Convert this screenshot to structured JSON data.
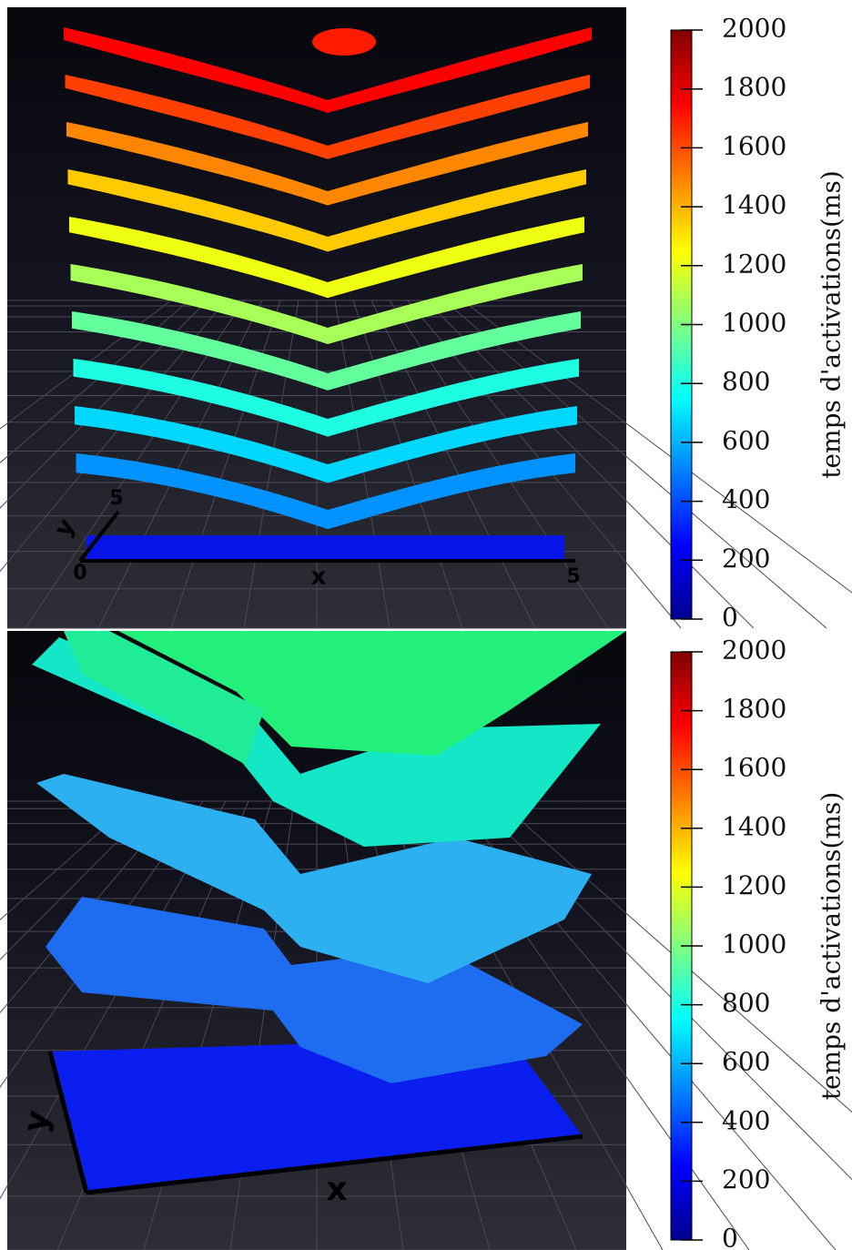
{
  "panels": [
    {
      "axis_labels": {
        "y_max": "5",
        "y": "y",
        "origin": "0",
        "x": "x",
        "x_max": "5"
      },
      "colorbar": {
        "label": "temps d'activations(ms)",
        "lim": [
          0,
          2000
        ],
        "ticks": [
          0,
          200,
          400,
          600,
          800,
          1000,
          1200,
          1400,
          1600,
          1800,
          2000
        ]
      }
    },
    {
      "axis_labels": {
        "y": "y",
        "x": "x"
      },
      "colorbar": {
        "label": "temps d'activations(ms)",
        "lim": [
          0,
          2000
        ],
        "ticks": [
          0,
          200,
          400,
          600,
          800,
          1000,
          1200,
          1400,
          1600,
          1800,
          2000
        ]
      }
    }
  ]
}
